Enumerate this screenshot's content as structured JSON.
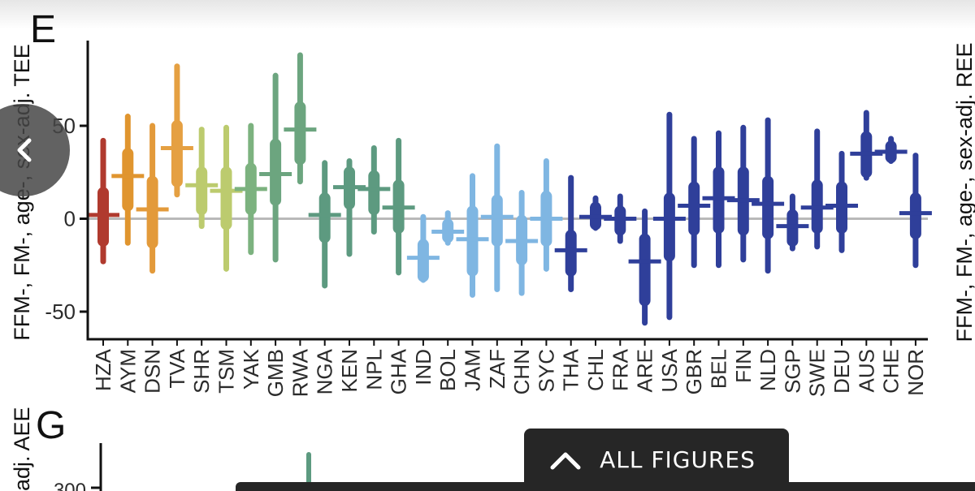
{
  "panels": {
    "e": {
      "letter": "E",
      "ylabel": "FFM-, FM-, age-, sex-adj. TEE",
      "right_ylabel": "FFM-, FM-, age-, sex-adj. REE"
    },
    "g": {
      "letter": "G",
      "ylabel": "adj. AEE",
      "first_tick": "300"
    }
  },
  "nav": {
    "all_figures_label": "ALL FIGURES",
    "expand_icon": "chevron-up-icon",
    "back_icon": "chevron-left-icon"
  },
  "chart_data": {
    "type": "interval",
    "title": "",
    "xlabel": "",
    "ylabel": "FFM-, FM-, age-, sex-adj. TEE",
    "ylim": [
      -63,
      90
    ],
    "yticks": [
      50,
      0,
      -50
    ],
    "reference_line": 0,
    "categories": [
      "HZA",
      "AYM",
      "DSN",
      "TVA",
      "SHR",
      "TSM",
      "YAK",
      "GMB",
      "RWA",
      "NGA",
      "KEN",
      "NPL",
      "GHA",
      "IND",
      "BOL",
      "JAM",
      "ZAF",
      "CHN",
      "SYC",
      "THA",
      "CHL",
      "FRA",
      "ARE",
      "USA",
      "GBR",
      "BEL",
      "FIN",
      "NLD",
      "SGP",
      "SWE",
      "DEU",
      "AUS",
      "CHE",
      "NOR"
    ],
    "series": [
      {
        "name": "median",
        "values": [
          2,
          23,
          5,
          38,
          18,
          15,
          16,
          24,
          48,
          2,
          17,
          16,
          6,
          -21,
          -7,
          -11,
          1,
          -12,
          0,
          -17,
          1,
          0,
          -23,
          0,
          7,
          11,
          10,
          8,
          -4,
          6,
          7,
          35,
          36,
          3
        ]
      },
      {
        "name": "range_low",
        "values": [
          -23,
          -13,
          -28,
          13,
          -4,
          -27,
          -18,
          -22,
          20,
          -36,
          -19,
          -7,
          -29,
          -33,
          -13,
          -41,
          -38,
          -40,
          -27,
          -38,
          -5,
          -12,
          -56,
          -53,
          -25,
          -25,
          -22,
          -28,
          -16,
          -15,
          -17,
          22,
          31,
          -25
        ]
      },
      {
        "name": "range_high",
        "values": [
          42,
          55,
          50,
          82,
          48,
          49,
          50,
          77,
          88,
          30,
          31,
          38,
          42,
          1,
          3,
          23,
          39,
          14,
          31,
          22,
          11,
          12,
          4,
          56,
          43,
          46,
          49,
          53,
          12,
          47,
          35,
          57,
          43,
          34
        ]
      },
      {
        "name": "inner_low",
        "values": [
          -12,
          7,
          -13,
          20,
          5,
          -3,
          5,
          10,
          32,
          -10,
          8,
          5,
          -5,
          -31,
          -10,
          -28,
          -12,
          -22,
          -12,
          -28,
          -3,
          -6,
          -44,
          -20,
          -6,
          -5,
          -6,
          -8,
          -12,
          -5,
          -5,
          25,
          33,
          -8
        ]
      },
      {
        "name": "inner_high",
        "values": [
          14,
          35,
          20,
          50,
          25,
          25,
          27,
          40,
          60,
          11,
          25,
          23,
          18,
          -14,
          -3,
          4,
          10,
          -1,
          12,
          -9,
          6,
          4,
          -11,
          11,
          17,
          25,
          25,
          20,
          2,
          18,
          17,
          44,
          39,
          11
        ]
      }
    ],
    "colors": [
      "#b03a2e",
      "#e0952f",
      "#e39a3a",
      "#e5a042",
      "#bccb6e",
      "#bccb6e",
      "#7cb27f",
      "#6ca57f",
      "#6ca57f",
      "#5d9a80",
      "#5d9a80",
      "#5d9a80",
      "#5d9a80",
      "#7fb6e2",
      "#7fb6e2",
      "#7fb6e2",
      "#7fb6e2",
      "#7fb6e2",
      "#7fb6e2",
      "#2f3f9a",
      "#2f3f9a",
      "#2f3f9a",
      "#2f3f9a",
      "#2f3f9a",
      "#2f3f9a",
      "#2f3f9a",
      "#2f3f9a",
      "#2f3f9a",
      "#2f3f9a",
      "#2f3f9a",
      "#2f3f9a",
      "#2f3f9a",
      "#2f3f9a",
      "#2f3f9a"
    ]
  },
  "theme": {
    "axis_color": "#111111",
    "zero_line_color": "#b9b9b9",
    "overlay_color": "#262626"
  }
}
